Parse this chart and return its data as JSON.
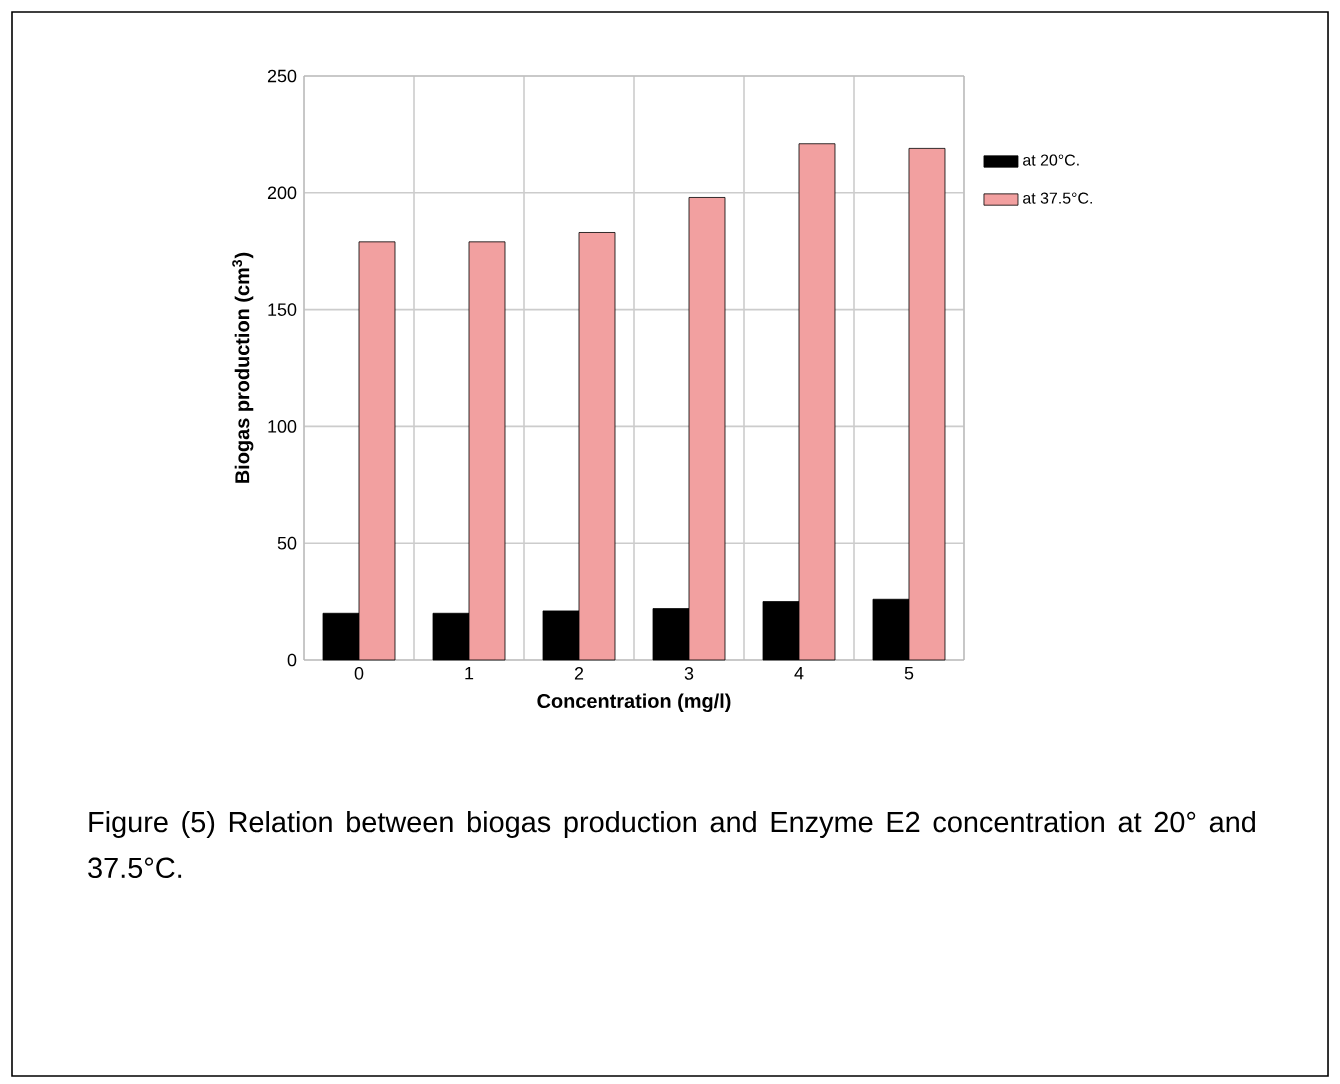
{
  "chart_data": {
    "type": "bar",
    "xlabel": "Concentration  (mg/l)",
    "ylabel": "Biogas production (cm$^{3}$)",
    "categories": [
      "0",
      "1",
      "2",
      "3",
      "4",
      "5"
    ],
    "series": [
      {
        "name": "at 20°C.",
        "color": "#000000",
        "values": [
          20,
          20,
          21,
          22,
          25,
          26
        ]
      },
      {
        "name": "at 37.5°C.",
        "color": "#f2a0a0",
        "values": [
          179,
          179,
          183,
          198,
          221,
          219
        ]
      }
    ],
    "ylim": [
      0,
      250
    ],
    "yticks": [
      0,
      50,
      100,
      150,
      200,
      250
    ],
    "grid": true,
    "legend": "right",
    "annotations": [
      "Figure (5) Relation between biogas production and Enzyme E2 concentration at 20° and 37.5°C."
    ]
  }
}
